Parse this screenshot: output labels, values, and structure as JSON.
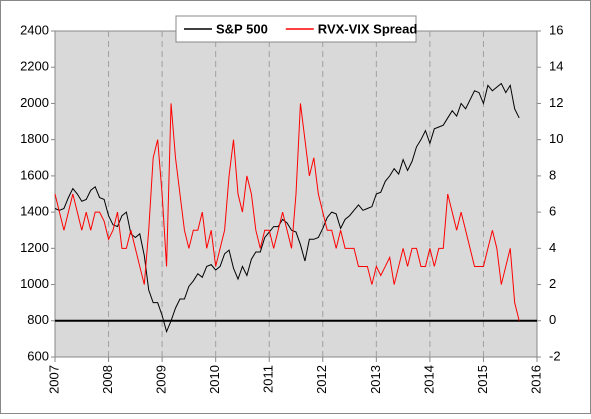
{
  "chart_data": {
    "type": "line",
    "x": [
      2007,
      2007.083,
      2007.167,
      2007.25,
      2007.333,
      2007.417,
      2007.5,
      2007.583,
      2007.667,
      2007.75,
      2007.833,
      2007.917,
      2008,
      2008.083,
      2008.167,
      2008.25,
      2008.333,
      2008.417,
      2008.5,
      2008.583,
      2008.667,
      2008.75,
      2008.833,
      2008.917,
      2009,
      2009.083,
      2009.167,
      2009.25,
      2009.333,
      2009.417,
      2009.5,
      2009.583,
      2009.667,
      2009.75,
      2009.833,
      2009.917,
      2010,
      2010.083,
      2010.167,
      2010.25,
      2010.333,
      2010.417,
      2010.5,
      2010.583,
      2010.667,
      2010.75,
      2010.833,
      2010.917,
      2011,
      2011.083,
      2011.167,
      2011.25,
      2011.333,
      2011.417,
      2011.5,
      2011.583,
      2011.667,
      2011.75,
      2011.833,
      2011.917,
      2012,
      2012.083,
      2012.167,
      2012.25,
      2012.333,
      2012.417,
      2012.5,
      2012.583,
      2012.667,
      2012.75,
      2012.833,
      2012.917,
      2013,
      2013.083,
      2013.167,
      2013.25,
      2013.333,
      2013.417,
      2013.5,
      2013.583,
      2013.667,
      2013.75,
      2013.833,
      2013.917,
      2014,
      2014.083,
      2014.167,
      2014.25,
      2014.333,
      2014.417,
      2014.5,
      2014.583,
      2014.667,
      2014.75,
      2014.833,
      2014.917,
      2015,
      2015.083,
      2015.167,
      2015.25,
      2015.333,
      2015.417,
      2015.5,
      2015.583,
      2015.667
    ],
    "series": [
      {
        "name": "S&P 500",
        "color": "#000000",
        "axis": "y",
        "values": [
          1420,
          1410,
          1420,
          1480,
          1530,
          1500,
          1460,
          1470,
          1520,
          1540,
          1480,
          1470,
          1380,
          1330,
          1320,
          1380,
          1400,
          1280,
          1260,
          1280,
          1160,
          970,
          900,
          900,
          830,
          740,
          800,
          870,
          920,
          920,
          990,
          1020,
          1060,
          1040,
          1100,
          1110,
          1080,
          1100,
          1170,
          1190,
          1090,
          1030,
          1100,
          1050,
          1140,
          1180,
          1180,
          1260,
          1290,
          1320,
          1320,
          1360,
          1340,
          1300,
          1290,
          1220,
          1130,
          1250,
          1250,
          1260,
          1310,
          1370,
          1400,
          1390,
          1310,
          1360,
          1380,
          1410,
          1440,
          1410,
          1420,
          1430,
          1500,
          1510,
          1570,
          1600,
          1640,
          1610,
          1690,
          1630,
          1680,
          1760,
          1800,
          1850,
          1780,
          1860,
          1870,
          1880,
          1920,
          1960,
          1930,
          2000,
          1970,
          2020,
          2070,
          2060,
          2000,
          2100,
          2070,
          2090,
          2110,
          2060,
          2100,
          1970,
          1920
        ]
      },
      {
        "name": "RVX-VIX Spread",
        "color": "#ff0000",
        "axis": "y2",
        "values": [
          7,
          6,
          5,
          6,
          7,
          6,
          5,
          6,
          5,
          6,
          6,
          5.5,
          4.5,
          5,
          6,
          4,
          4,
          5,
          4,
          3,
          2,
          5,
          9,
          10,
          7,
          3,
          12,
          9,
          7,
          5,
          4,
          5,
          5,
          6,
          4,
          5,
          3,
          4,
          5,
          8,
          10,
          7,
          6,
          8,
          7,
          5,
          4,
          5,
          5,
          4,
          5,
          6,
          5,
          4,
          7,
          12,
          10,
          8,
          9,
          7,
          6,
          5,
          5,
          4,
          5,
          4,
          4,
          4,
          3,
          3,
          3,
          2,
          3,
          2.5,
          3,
          3.5,
          2,
          3,
          4,
          3,
          4,
          4,
          3,
          3,
          4,
          3,
          4,
          4,
          7,
          6,
          5,
          6,
          5,
          4,
          3,
          3,
          3,
          4,
          5,
          4,
          2,
          3,
          4,
          1,
          0
        ]
      }
    ],
    "xlim": [
      2007,
      2016
    ],
    "xticks": [
      2007,
      2008,
      2009,
      2010,
      2011,
      2012,
      2013,
      2014,
      2015,
      2016
    ],
    "ylim": [
      600,
      2400
    ],
    "yticks": [
      600,
      800,
      1000,
      1200,
      1400,
      1600,
      1800,
      2000,
      2200,
      2400
    ],
    "y2lim": [
      -2,
      16
    ],
    "y2ticks": [
      -2,
      0,
      2,
      4,
      6,
      8,
      10,
      12,
      14,
      16
    ],
    "hline_y2": 0,
    "grid": "x",
    "legend": "top"
  }
}
